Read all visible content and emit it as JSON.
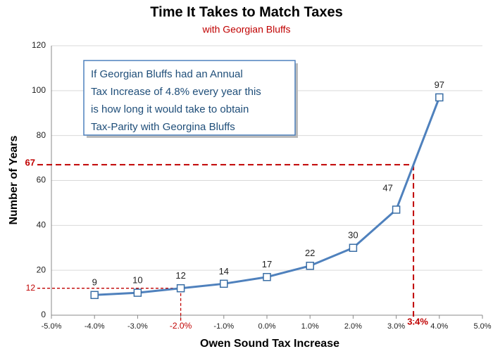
{
  "chart_data": {
    "type": "line",
    "title": "Time It Takes to Match Taxes",
    "subtitle": "with Georgian Bluffs",
    "x_label": "Owen Sound Tax Increase",
    "y_label": "Number of Years",
    "x": [
      -4,
      -3,
      -2,
      -1,
      0,
      1,
      2,
      3,
      4
    ],
    "values": [
      9,
      10,
      12,
      14,
      17,
      22,
      30,
      47,
      97
    ],
    "color": "#4f81bd",
    "xlim": [
      -5,
      5
    ],
    "xticks": [
      {
        "value": -5,
        "label": "-5.0%"
      },
      {
        "value": -4,
        "label": "-4.0%"
      },
      {
        "value": -3,
        "label": "-3.0%"
      },
      {
        "value": -2,
        "label": "-2.0%"
      },
      {
        "value": -1,
        "label": "-1.0%"
      },
      {
        "value": 0,
        "label": "0.0%"
      },
      {
        "value": 1,
        "label": "1.0%"
      },
      {
        "value": 2,
        "label": "2.0%"
      },
      {
        "value": 3,
        "label": "3.0%"
      },
      {
        "value": 4,
        "label": "4.0%"
      },
      {
        "value": 5,
        "label": "5.0%"
      }
    ],
    "ylim": [
      0,
      120
    ],
    "yticks": [
      0,
      20,
      40,
      60,
      80,
      100,
      120
    ],
    "grid": true,
    "annotation": [
      "If Georgian Bluffs had an Annual",
      "Tax Increase of 4.8% every year this",
      "is how long it would take to obtain",
      "Tax-Parity with Georgina Bluffs"
    ],
    "reference_lines": [
      {
        "x": {
          "value": 3.4,
          "label": "3.4%"
        },
        "y": 67,
        "color": "#c00000"
      },
      {
        "x": -2,
        "y": 12,
        "color": "#c00000"
      }
    ]
  }
}
